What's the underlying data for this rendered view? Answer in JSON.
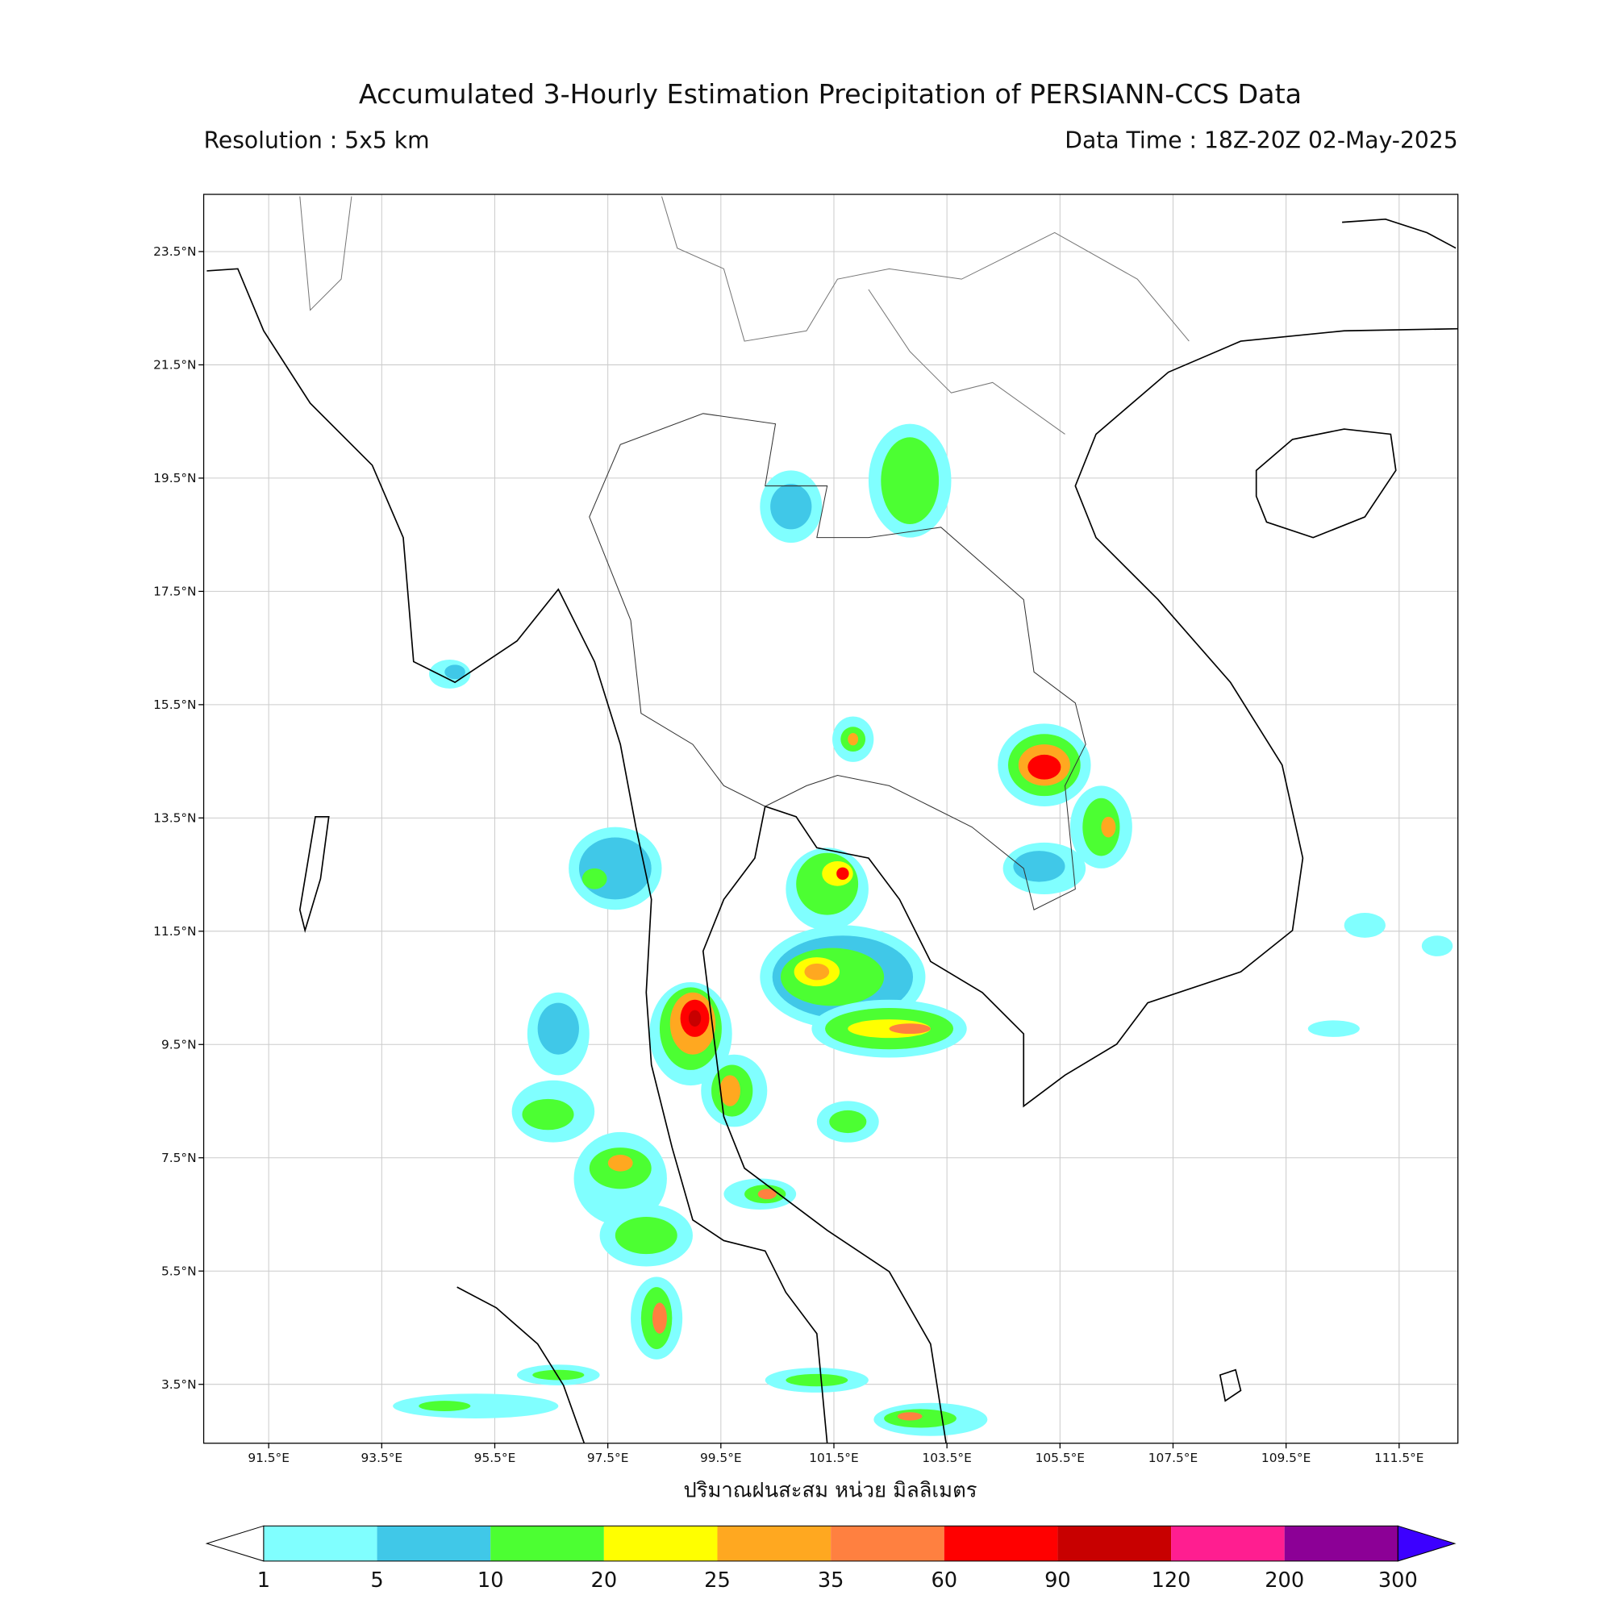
{
  "header": {
    "title": "Accumulated 3-Hourly Estimation Precipitation of PERSIANN-CCS Data",
    "resolution": "Resolution : 5x5 km",
    "data_time": "Data Time : 18Z-20Z 02-May-2025"
  },
  "map": {
    "lon_range": [
      90.35,
      112.54
    ],
    "lat_range": [
      2.46,
      24.51
    ],
    "grid": true,
    "lon_ticks": [
      {
        "value": 91.5,
        "label": "91.5°E"
      },
      {
        "value": 93.5,
        "label": "93.5°E"
      },
      {
        "value": 95.5,
        "label": "95.5°E"
      },
      {
        "value": 97.5,
        "label": "97.5°E"
      },
      {
        "value": 99.5,
        "label": "99.5°E"
      },
      {
        "value": 101.5,
        "label": "101.5°E"
      },
      {
        "value": 103.5,
        "label": "103.5°E"
      },
      {
        "value": 105.5,
        "label": "105.5°E"
      },
      {
        "value": 107.5,
        "label": "107.5°E"
      },
      {
        "value": 109.5,
        "label": "109.5°E"
      },
      {
        "value": 111.5,
        "label": "111.5°E"
      }
    ],
    "lat_ticks": [
      {
        "value": 23.5,
        "label": "23.5°N"
      },
      {
        "value": 21.5,
        "label": "21.5°N"
      },
      {
        "value": 19.5,
        "label": "19.5°N"
      },
      {
        "value": 17.5,
        "label": "17.5°N"
      },
      {
        "value": 15.5,
        "label": "15.5°N"
      },
      {
        "value": 13.5,
        "label": "13.5°N"
      },
      {
        "value": 11.5,
        "label": "11.5°N"
      },
      {
        "value": 9.5,
        "label": "9.5°N"
      },
      {
        "value": 7.5,
        "label": "7.5°N"
      },
      {
        "value": 5.5,
        "label": "5.5°N"
      },
      {
        "value": 3.5,
        "label": "3.5°N"
      }
    ],
    "xlabel": "ปริมาณฝนสะสม หน่วย มิลลิเมตร"
  },
  "colorbar": {
    "levels": [
      1,
      5,
      10,
      20,
      25,
      35,
      60,
      90,
      120,
      200,
      300
    ],
    "colors": [
      "#80ffff",
      "#40c8e8",
      "#4cff32",
      "#ffff00",
      "#ffa820",
      "#ff8040",
      "#ff0000",
      "#c80000",
      "#ff1e90",
      "#8c0096"
    ],
    "under_color": "#ffffff",
    "over_color": "#3c00ff"
  }
}
